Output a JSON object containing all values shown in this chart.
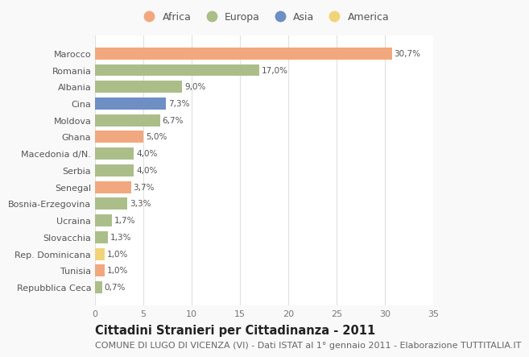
{
  "categories": [
    "Marocco",
    "Romania",
    "Albania",
    "Cina",
    "Moldova",
    "Ghana",
    "Macedonia d/N.",
    "Serbia",
    "Senegal",
    "Bosnia-Erzegovina",
    "Ucraina",
    "Slovacchia",
    "Rep. Dominicana",
    "Tunisia",
    "Repubblica Ceca"
  ],
  "values": [
    30.7,
    17.0,
    9.0,
    7.3,
    6.7,
    5.0,
    4.0,
    4.0,
    3.7,
    3.3,
    1.7,
    1.3,
    1.0,
    1.0,
    0.7
  ],
  "continents": [
    "Africa",
    "Europa",
    "Europa",
    "Asia",
    "Europa",
    "Africa",
    "Europa",
    "Europa",
    "Africa",
    "Europa",
    "Europa",
    "Europa",
    "America",
    "Africa",
    "Europa"
  ],
  "labels": [
    "30,7%",
    "17,0%",
    "9,0%",
    "7,3%",
    "6,7%",
    "5,0%",
    "4,0%",
    "4,0%",
    "3,7%",
    "3,3%",
    "1,7%",
    "1,3%",
    "1,0%",
    "1,0%",
    "0,7%"
  ],
  "continent_colors": {
    "Africa": "#F2A87E",
    "Europa": "#ABBE8A",
    "Asia": "#6E8EC4",
    "America": "#F2D478"
  },
  "legend_order": [
    "Africa",
    "Europa",
    "Asia",
    "America"
  ],
  "xlim": [
    0,
    35
  ],
  "xticks": [
    0,
    5,
    10,
    15,
    20,
    25,
    30,
    35
  ],
  "title": "Cittadini Stranieri per Cittadinanza - 2011",
  "subtitle": "COMUNE DI LUGO DI VICENZA (VI) - Dati ISTAT al 1° gennaio 2011 - Elaborazione TUTTITALIA.IT",
  "background_color": "#f9f9f9",
  "plot_background": "#ffffff",
  "grid_color": "#e0e0e0",
  "bar_height": 0.72,
  "title_fontsize": 10.5,
  "subtitle_fontsize": 8,
  "label_fontsize": 7.5,
  "tick_fontsize": 8,
  "legend_fontsize": 9
}
